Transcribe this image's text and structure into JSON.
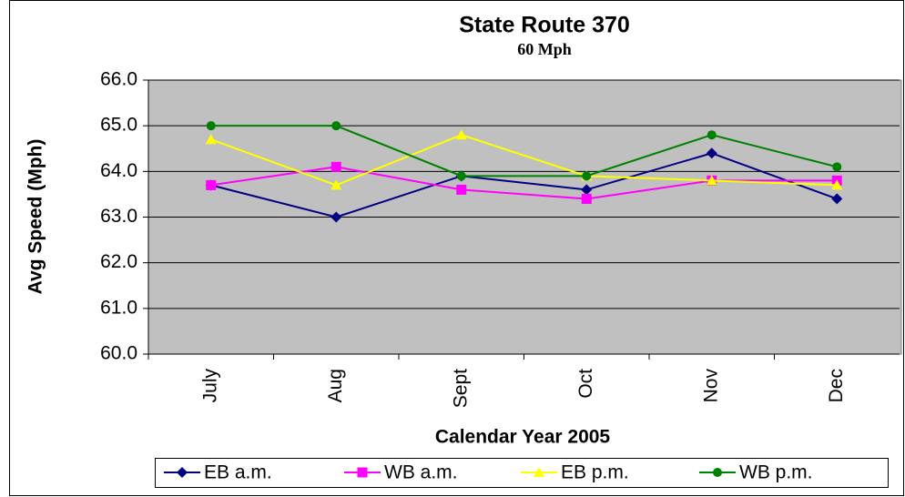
{
  "chart_data": {
    "type": "line",
    "title": "State Route 370",
    "subtitle": "60 Mph",
    "x_label": "Calendar Year 2005",
    "y_label": "Avg Speed (Mph)",
    "categories": [
      "July",
      "Aug",
      "Sept",
      "Oct",
      "Nov",
      "Dec"
    ],
    "series": [
      {
        "name": "EB a.m.",
        "color": "#000080",
        "marker": "diamond",
        "values": [
          63.7,
          63.0,
          63.9,
          63.6,
          64.4,
          63.4
        ]
      },
      {
        "name": "WB a.m.",
        "color": "#ff00ff",
        "marker": "square",
        "values": [
          63.7,
          64.1,
          63.6,
          63.4,
          63.8,
          63.8
        ]
      },
      {
        "name": "EB p.m.",
        "color": "#ffff00",
        "marker": "triangle",
        "values": [
          64.7,
          63.7,
          64.8,
          63.9,
          63.8,
          63.7
        ]
      },
      {
        "name": "WB p.m.",
        "color": "#008000",
        "marker": "circle",
        "values": [
          65.0,
          65.0,
          63.9,
          63.9,
          64.8,
          64.1
        ]
      }
    ],
    "ylim": [
      60,
      66
    ],
    "yticks": [
      {
        "value": 60,
        "label": "60.0"
      },
      {
        "value": 61,
        "label": "61.0"
      },
      {
        "value": 62,
        "label": "62.0"
      },
      {
        "value": 63,
        "label": "63.0"
      },
      {
        "value": 64,
        "label": "64.0"
      },
      {
        "value": 65,
        "label": "65.0"
      },
      {
        "value": 66,
        "label": "66.0"
      }
    ],
    "grid": true,
    "legend": "bottom"
  }
}
